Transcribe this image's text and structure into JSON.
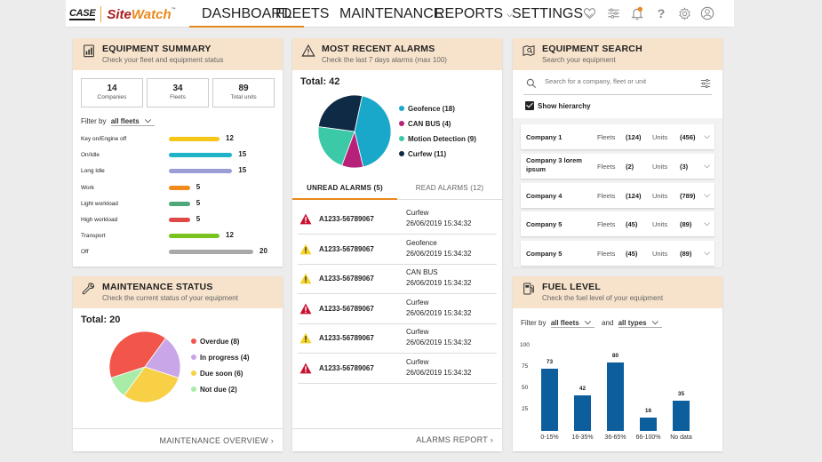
{
  "brand": {
    "case": "CASE",
    "site": "Site",
    "watch": "Watch"
  },
  "nav": {
    "items": [
      {
        "label": "DASHBOARD",
        "active": true,
        "dropdown": false
      },
      {
        "label": "FLEETS",
        "active": false,
        "dropdown": false
      },
      {
        "label": "MAINTENANCE",
        "active": false,
        "dropdown": false
      },
      {
        "label": "REPORTS",
        "active": false,
        "dropdown": true
      },
      {
        "label": "SETTINGS",
        "active": false,
        "dropdown": true
      }
    ],
    "icons": [
      "heart-icon",
      "sliders-icon",
      "bell-icon",
      "help-icon",
      "gear-icon",
      "user-icon"
    ],
    "notification_count": "9"
  },
  "equipment_summary": {
    "title": "EQUIPMENT SUMMARY",
    "subtitle": "Check your fleet and equipment status",
    "stats": [
      {
        "value": "14",
        "label": "Companies"
      },
      {
        "value": "34",
        "label": "Fleets"
      },
      {
        "value": "89",
        "label": "Total units"
      }
    ],
    "filter_label": "Filter by",
    "filter_value": "all fleets",
    "chart_data": {
      "type": "bar",
      "orientation": "horizontal",
      "categories": [
        "Key on/Engine off",
        "On/Idle",
        "Long Idle",
        "Work",
        "Light workload",
        "High workload",
        "Transport",
        "Off"
      ],
      "values": [
        12,
        15,
        15,
        5,
        5,
        5,
        12,
        20
      ],
      "colors": [
        "#f5c518",
        "#1fb3c8",
        "#9b9ed6",
        "#f08a1c",
        "#4ea87a",
        "#e04848",
        "#7ac21e",
        "#a8a8a8"
      ],
      "xlim": [
        0,
        20
      ]
    }
  },
  "alarms": {
    "title": "MOST RECENT ALARMS",
    "subtitle": "Check the last 7 days alarms (max 100)",
    "total_label": "Total: 42",
    "chart_data": {
      "type": "pie",
      "categories": [
        "Geofence",
        "CAN BUS",
        "Motion Detection",
        "Curfew"
      ],
      "values": [
        18,
        4,
        9,
        11
      ],
      "colors": [
        "#19a8c9",
        "#b8217a",
        "#3cc9a8",
        "#0f2a45"
      ]
    },
    "legend": [
      {
        "label": "Geofence (18)"
      },
      {
        "label": "CAN BUS (4)"
      },
      {
        "label": "Motion Detection (9)"
      },
      {
        "label": "Curfew (11)"
      }
    ],
    "tabs": [
      {
        "label": "UNREAD ALARMS (5)",
        "active": true
      },
      {
        "label": "READ ALARMS (12)",
        "active": false
      }
    ],
    "rows": [
      {
        "severity": "high",
        "id": "A1233-56789067",
        "type": "Curfew",
        "date": "26/06/2019 15:34:32"
      },
      {
        "severity": "medium",
        "id": "A1233-56789067",
        "type": "Geofence",
        "date": "26/06/2019 15:34:32"
      },
      {
        "severity": "medium",
        "id": "A1233-56789067",
        "type": "CAN BUS",
        "date": "26/06/2019 15:34:32"
      },
      {
        "severity": "high",
        "id": "A1233-56789067",
        "type": "Curfew",
        "date": "26/06/2019 15:34:32"
      },
      {
        "severity": "medium",
        "id": "A1233-56789067",
        "type": "Curfew",
        "date": "26/06/2019 15:34:32"
      },
      {
        "severity": "high",
        "id": "A1233-56789067",
        "type": "Curfew",
        "date": "26/06/2019 15:34:32"
      }
    ],
    "footer_link": "ALARMS REPORT"
  },
  "equipment_search": {
    "title": "EQUIPMENT SEARCH",
    "subtitle": "Search your equipment",
    "search_placeholder": "Search for a company, fleet or unit",
    "show_hierarchy_label": "Show hierarchy",
    "fleets_label": "Fleets",
    "units_label": "Units",
    "companies": [
      {
        "name": "Company 1",
        "fleets": "(124)",
        "units": "(456)"
      },
      {
        "name": "Company 3 lorem ipsum",
        "fleets": "(2)",
        "units": "(3)"
      },
      {
        "name": "Company 4",
        "fleets": "(124)",
        "units": "(789)"
      },
      {
        "name": "Company 5",
        "fleets": "(45)",
        "units": "(89)"
      },
      {
        "name": "Company 5",
        "fleets": "(45)",
        "units": "(89)"
      }
    ]
  },
  "maintenance": {
    "title": "MAINTENANCE STATUS",
    "subtitle": "Check the current status of your equipment",
    "total_label": "Total: 20",
    "chart_data": {
      "type": "pie",
      "categories": [
        "Overdue",
        "In progress",
        "Due soon",
        "Not due"
      ],
      "values": [
        8,
        4,
        6,
        2
      ],
      "colors": [
        "#f2564a",
        "#c9a6e8",
        "#f7d046",
        "#a8eca8"
      ]
    },
    "legend": [
      {
        "label": "Overdue (8)"
      },
      {
        "label": "In progress (4)"
      },
      {
        "label": "Due soon (6)"
      },
      {
        "label": "Not due (2)"
      }
    ],
    "footer_link": "MAINTENANCE OVERVIEW"
  },
  "fuel": {
    "title": "FUEL LEVEL",
    "subtitle": "Check the fuel level of your equipment",
    "filter_label": "Filter by",
    "filter_value": "all fleets",
    "and_label": "and",
    "type_value": "all types",
    "chart_data": {
      "type": "bar",
      "categories": [
        "0-15%",
        "16-35%",
        "36-65%",
        "66-100%",
        "No data"
      ],
      "values": [
        73,
        42,
        80,
        16,
        35
      ],
      "ylim": [
        0,
        100
      ],
      "yticks": [
        "100",
        "75",
        "50",
        "25"
      ],
      "color": "#0c5e9c"
    }
  }
}
